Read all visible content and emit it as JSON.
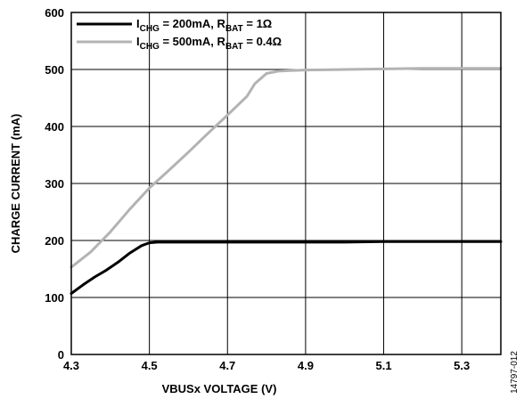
{
  "chart_data": {
    "type": "line",
    "title": "",
    "xlabel": "VBUSx VOLTAGE (V)",
    "ylabel": "CHARGE CURRENT (mA)",
    "xlim": [
      4.3,
      5.4
    ],
    "ylim": [
      0,
      600
    ],
    "grid": true,
    "legend_position": "top-left",
    "x_ticks": [
      "4.3",
      "4.5",
      "4.7",
      "4.9",
      "5.1",
      "5.3"
    ],
    "y_ticks": [
      "0",
      "100",
      "200",
      "300",
      "400",
      "500",
      "600"
    ],
    "figure_id": "14797-012",
    "series": [
      {
        "name": "ICHG = 200mA, RBAT = 1Ω",
        "legend": {
          "p1": "I",
          "s1": "CHG",
          "p2": " = 200mA, R",
          "s2": "BAT",
          "p3": " = 1Ω"
        },
        "color": "#000000",
        "x": [
          4.3,
          4.33,
          4.36,
          4.39,
          4.42,
          4.45,
          4.48,
          4.5,
          4.52,
          4.55,
          4.6,
          4.7,
          4.8,
          4.9,
          5.0,
          5.1,
          5.2,
          5.3,
          5.4
        ],
        "y": [
          107,
          122,
          136,
          148,
          162,
          178,
          191,
          196,
          197,
          197,
          197,
          197,
          197,
          197,
          197,
          198,
          198,
          198,
          198
        ]
      },
      {
        "name": "ICHG = 500mA, RBAT = 0.4Ω",
        "legend": {
          "p1": "I",
          "s1": "CHG",
          "p2": " = 500mA, R",
          "s2": "BAT",
          "p3": " = 0.4Ω"
        },
        "color": "#b3b3b3",
        "x": [
          4.3,
          4.35,
          4.4,
          4.45,
          4.5,
          4.55,
          4.6,
          4.65,
          4.7,
          4.75,
          4.77,
          4.8,
          4.83,
          4.86,
          4.9,
          5.0,
          5.1,
          5.2,
          5.3,
          5.4
        ],
        "y": [
          153,
          180,
          215,
          255,
          292,
          323,
          355,
          388,
          420,
          453,
          475,
          493,
          497,
          498,
          499,
          500,
          501,
          502,
          502,
          502
        ]
      }
    ]
  }
}
